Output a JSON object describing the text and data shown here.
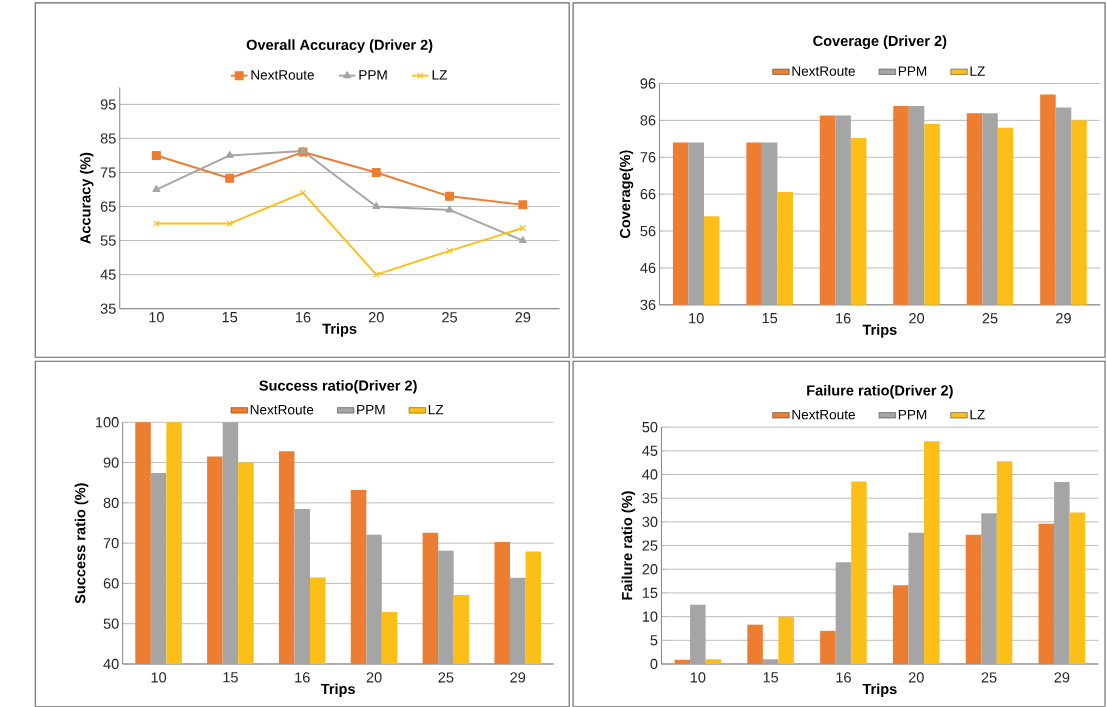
{
  "chart_data": [
    {
      "type": "line",
      "title": "Overall Accuracy (Driver 2)",
      "xlabel": "Trips",
      "ylabel": "Accuracy (%)",
      "categories": [
        "10",
        "15",
        "16",
        "20",
        "25",
        "29"
      ],
      "ylim": [
        35,
        100
      ],
      "yticks": [
        35,
        45,
        55,
        65,
        75,
        85,
        95
      ],
      "grid": "y",
      "legend": "top",
      "series": [
        {
          "name": "NextRoute",
          "color": "#ed7d31",
          "marker": "square",
          "values": [
            80,
            73.3,
            81,
            75,
            68,
            65.5
          ]
        },
        {
          "name": "PPM",
          "color": "#a5a5a5",
          "marker": "triangle",
          "values": [
            70,
            80,
            81.3,
            65,
            64,
            55
          ]
        },
        {
          "name": "LZ",
          "color": "#fcbf17",
          "marker": "cross",
          "values": [
            60,
            60,
            69,
            45,
            52,
            58.7
          ]
        }
      ]
    },
    {
      "type": "bar",
      "title": "Coverage (Driver 2)",
      "xlabel": "Trips",
      "ylabel": "Coverage(%)",
      "categories": [
        "10",
        "15",
        "16",
        "20",
        "25",
        "29"
      ],
      "ylim": [
        36,
        96
      ],
      "yticks": [
        36,
        46,
        56,
        66,
        76,
        86,
        96
      ],
      "grid": "y",
      "legend": "top",
      "series": [
        {
          "name": "NextRoute",
          "color": "#ed7d31",
          "values": [
            80,
            80,
            87.3,
            89.9,
            87.9,
            93
          ]
        },
        {
          "name": "PPM",
          "color": "#a5a5a5",
          "values": [
            80,
            80,
            87.3,
            89.9,
            87.9,
            89.5
          ]
        },
        {
          "name": "LZ",
          "color": "#fcbf17",
          "values": [
            60,
            66.6,
            81.2,
            85,
            84,
            86
          ]
        }
      ]
    },
    {
      "type": "bar",
      "title": "Success ratio(Driver 2)",
      "xlabel": "Trips",
      "ylabel": "Success ratio (%)",
      "categories": [
        "10",
        "15",
        "16",
        "20",
        "25",
        "29"
      ],
      "ylim": [
        40,
        100
      ],
      "yticks": [
        40,
        50,
        60,
        70,
        80,
        90,
        100
      ],
      "grid": "y",
      "legend": "top",
      "series": [
        {
          "name": "NextRoute",
          "color": "#ed7d31",
          "values": [
            100,
            91.5,
            92.8,
            83.2,
            72.6,
            70.3
          ]
        },
        {
          "name": "PPM",
          "color": "#a5a5a5",
          "values": [
            87.4,
            100,
            78.5,
            72.1,
            68.1,
            61.4
          ]
        },
        {
          "name": "LZ",
          "color": "#fcbf17",
          "values": [
            100,
            90,
            61.5,
            52.9,
            57.1,
            67.9
          ]
        }
      ]
    },
    {
      "type": "bar",
      "title": "Failure ratio(Driver 2)",
      "xlabel": "Trips",
      "ylabel": "Failure ratio (%)",
      "categories": [
        "10",
        "15",
        "16",
        "20",
        "25",
        "29"
      ],
      "ylim": [
        0,
        50
      ],
      "yticks": [
        0,
        5,
        10,
        15,
        20,
        25,
        30,
        35,
        40,
        45,
        50
      ],
      "grid": "y",
      "legend": "top",
      "series": [
        {
          "name": "NextRoute",
          "color": "#ed7d31",
          "values": [
            0.9,
            8.3,
            7.0,
            16.6,
            27.3,
            29.6
          ]
        },
        {
          "name": "PPM",
          "color": "#a5a5a5",
          "values": [
            12.5,
            1,
            21.5,
            27.7,
            31.8,
            38.4
          ]
        },
        {
          "name": "LZ",
          "color": "#fcbf17",
          "values": [
            1,
            10,
            38.5,
            47.0,
            42.8,
            32.0
          ]
        }
      ]
    }
  ]
}
